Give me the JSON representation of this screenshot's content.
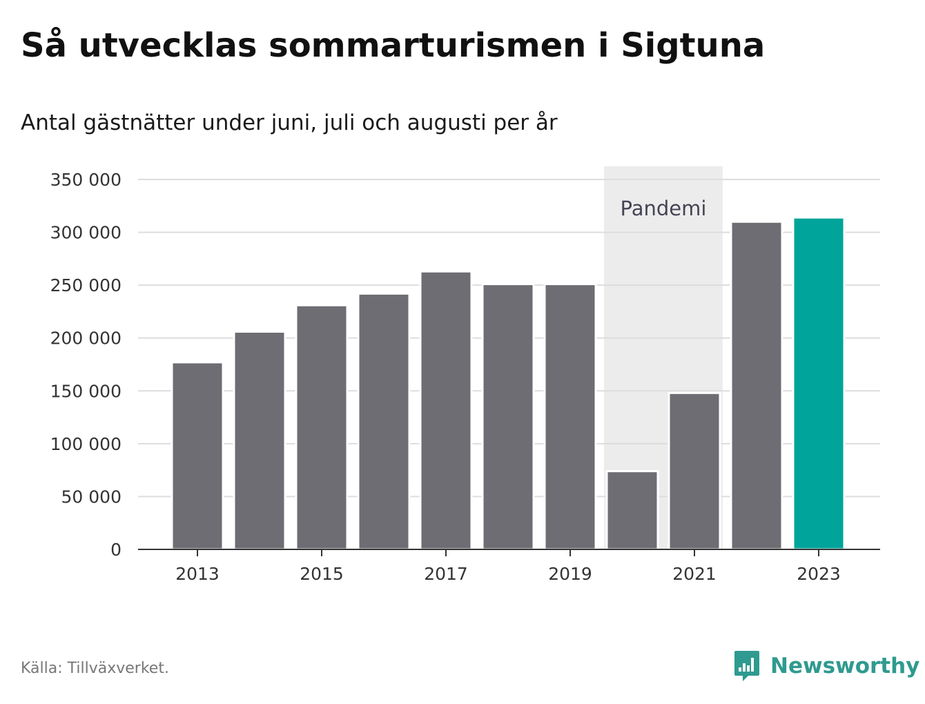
{
  "header": {
    "title": "Så utvecklas sommarturismen i Sigtuna",
    "subtitle": "Antal gästnätter under juni, juli och augusti per år"
  },
  "footer": {
    "source": "Källa: Tillväxverket.",
    "brand": "Newsworthy",
    "brand_icon": "newsworthy-logo-icon"
  },
  "colors": {
    "bar": "#6e6d73",
    "highlight": "#00a49a",
    "band": "#ececec",
    "grid": "#dddddd",
    "axis": "#333333",
    "brand": "#2f9a8f"
  },
  "chart_data": {
    "type": "bar",
    "title": "Så utvecklas sommarturismen i Sigtuna",
    "subtitle": "Antal gästnätter under juni, juli och augusti per år",
    "xlabel": "",
    "ylabel": "",
    "categories": [
      "2013",
      "2014",
      "2015",
      "2016",
      "2017",
      "2018",
      "2019",
      "2020",
      "2021",
      "2022",
      "2023"
    ],
    "values": [
      177000,
      206000,
      231000,
      242000,
      263000,
      251000,
      251000,
      74000,
      148000,
      310000,
      314000
    ],
    "highlight_index": 10,
    "ylim": [
      0,
      350000
    ],
    "yticks": [
      0,
      50000,
      100000,
      150000,
      200000,
      250000,
      300000,
      350000
    ],
    "ytick_labels": [
      "0",
      "50 000",
      "100 000",
      "150 000",
      "200 000",
      "250 000",
      "300 000",
      "350 000"
    ],
    "xtick_labels": [
      "2013",
      "2015",
      "2017",
      "2019",
      "2021",
      "2023"
    ],
    "grid": true,
    "legend": "none",
    "annotations": [
      {
        "type": "shaded-band",
        "label": "Pandemi",
        "from": "2020",
        "to": "2021"
      }
    ]
  }
}
